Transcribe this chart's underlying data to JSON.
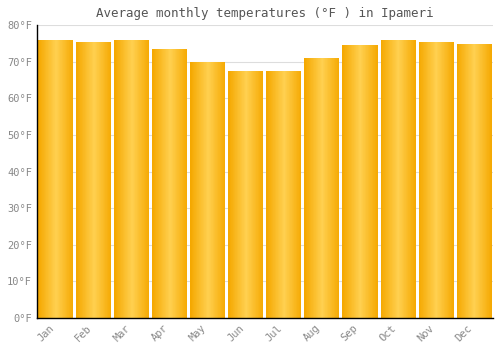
{
  "months": [
    "Jan",
    "Feb",
    "Mar",
    "Apr",
    "May",
    "Jun",
    "Jul",
    "Aug",
    "Sep",
    "Oct",
    "Nov",
    "Dec"
  ],
  "values": [
    76,
    75.5,
    76,
    73.5,
    70,
    67.5,
    67.5,
    71,
    74.5,
    76,
    75.5,
    75
  ],
  "title": "Average monthly temperatures (°F ) in Ipameri",
  "ylim": [
    0,
    80
  ],
  "yticks": [
    0,
    10,
    20,
    30,
    40,
    50,
    60,
    70,
    80
  ],
  "ytick_labels": [
    "0°F",
    "10°F",
    "20°F",
    "30°F",
    "40°F",
    "50°F",
    "60°F",
    "70°F",
    "80°F"
  ],
  "bar_color_edge": "#F5A800",
  "bar_color_center": "#FFD050",
  "background_color": "#FFFFFF",
  "plot_bg_color": "#FFFFFF",
  "grid_color": "#DDDDDD",
  "text_color": "#888888",
  "title_color": "#555555",
  "axis_color": "#000000"
}
